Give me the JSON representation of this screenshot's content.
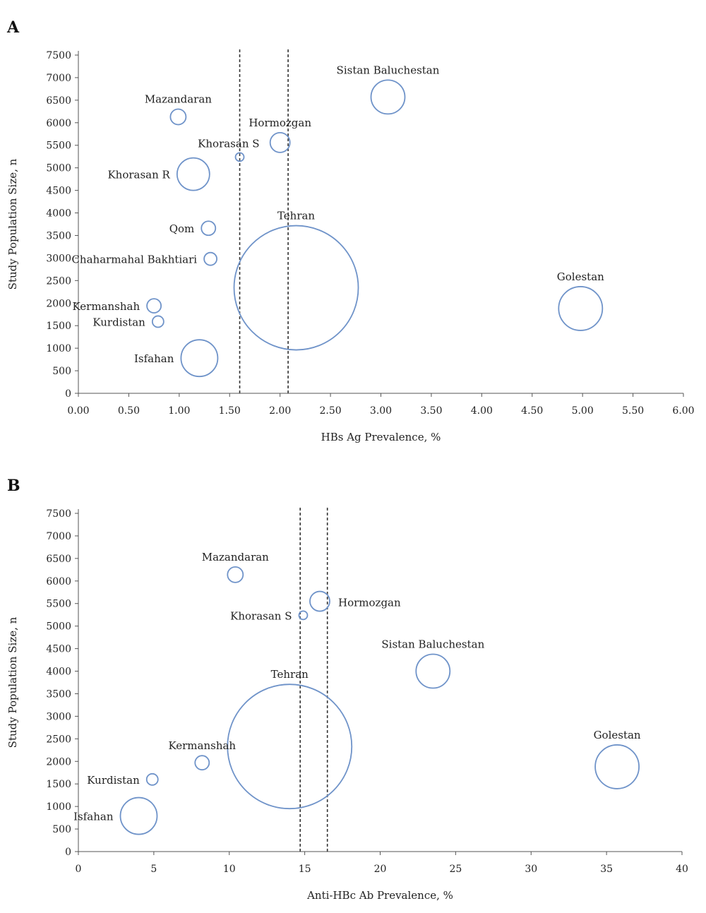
{
  "colors": {
    "bubble_stroke": "#6f93c9",
    "axis": "#555555",
    "refline": "#333333"
  },
  "chart_data": [
    {
      "panel_label": "A",
      "type": "scatter",
      "subtype": "bubble",
      "xlabel": "HBs Ag Prevalence, %",
      "ylabel": "Study Population Size, n",
      "xlim": [
        0,
        6
      ],
      "ylim": [
        0,
        7500
      ],
      "x_ticks": [
        "0.00",
        "0.50",
        "1.00",
        "1.50",
        "2.00",
        "2.50",
        "3.00",
        "3.50",
        "4.00",
        "4.50",
        "5.00",
        "5.50",
        "6.00"
      ],
      "y_ticks": [
        "0",
        "500",
        "1000",
        "1500",
        "2000",
        "2500",
        "3000",
        "3500",
        "4000",
        "4500",
        "5000",
        "5500",
        "6000",
        "6500",
        "7000",
        "7500"
      ],
      "grid": false,
      "reference_lines_x": [
        1.6,
        2.08
      ],
      "points": [
        {
          "label": "Sistan Baluchestan",
          "x": 3.07,
          "y": 6570,
          "r": 24,
          "label_pos": "above"
        },
        {
          "label": "Mazandaran",
          "x": 0.99,
          "y": 6130,
          "r": 11,
          "label_pos": "above"
        },
        {
          "label": "Hormozgan",
          "x": 2.0,
          "y": 5560,
          "r": 14,
          "label_pos": "above"
        },
        {
          "label": "Khorasan S",
          "x": 1.6,
          "y": 5240,
          "r": 6,
          "label_pos": "left-above"
        },
        {
          "label": "Khorasan R",
          "x": 1.14,
          "y": 4860,
          "r": 23,
          "label_pos": "left"
        },
        {
          "label": "Qom",
          "x": 1.29,
          "y": 3660,
          "r": 10,
          "label_pos": "left"
        },
        {
          "label": "Chaharmahal Bakhtiari",
          "x": 1.31,
          "y": 2980,
          "r": 9,
          "label_pos": "left"
        },
        {
          "label": "Tehran",
          "x": 2.16,
          "y": 2340,
          "r": 88,
          "label_pos": "above"
        },
        {
          "label": "Golestan",
          "x": 4.98,
          "y": 1880,
          "r": 31,
          "label_pos": "above"
        },
        {
          "label": "Kermanshah",
          "x": 0.75,
          "y": 1940,
          "r": 10,
          "label_pos": "left"
        },
        {
          "label": "Kurdistan",
          "x": 0.79,
          "y": 1590,
          "r": 8,
          "label_pos": "left"
        },
        {
          "label": "Isfahan",
          "x": 1.2,
          "y": 780,
          "r": 26,
          "label_pos": "left"
        }
      ]
    },
    {
      "panel_label": "B",
      "type": "scatter",
      "subtype": "bubble",
      "xlabel": "Anti-HBc Ab Prevalence, %",
      "ylabel": "Study Population Size, n",
      "xlim": [
        0,
        40
      ],
      "ylim": [
        0,
        7500
      ],
      "x_ticks": [
        "0",
        "5",
        "10",
        "15",
        "20",
        "25",
        "30",
        "35",
        "40"
      ],
      "y_ticks": [
        "0",
        "500",
        "1000",
        "1500",
        "2000",
        "2500",
        "3000",
        "3500",
        "4000",
        "4500",
        "5000",
        "5500",
        "6000",
        "6500",
        "7000",
        "7500"
      ],
      "grid": false,
      "reference_lines_x": [
        14.7,
        16.5
      ],
      "points": [
        {
          "label": "Mazandaran",
          "x": 10.4,
          "y": 6140,
          "r": 11,
          "label_pos": "above"
        },
        {
          "label": "Hormozgan",
          "x": 16.0,
          "y": 5550,
          "r": 14,
          "label_pos": "right"
        },
        {
          "label": "Khorasan S",
          "x": 14.9,
          "y": 5240,
          "r": 6,
          "label_pos": "left"
        },
        {
          "label": "Sistan Baluchestan",
          "x": 23.5,
          "y": 4000,
          "r": 24,
          "label_pos": "above"
        },
        {
          "label": "Tehran",
          "x": 14.0,
          "y": 2330,
          "r": 88,
          "label_pos": "above"
        },
        {
          "label": "Golestan",
          "x": 35.7,
          "y": 1880,
          "r": 31,
          "label_pos": "above"
        },
        {
          "label": "Kermanshah",
          "x": 8.2,
          "y": 1970,
          "r": 10,
          "label_pos": "above"
        },
        {
          "label": "Kurdistan",
          "x": 4.9,
          "y": 1600,
          "r": 8,
          "label_pos": "left"
        },
        {
          "label": "Isfahan",
          "x": 4.0,
          "y": 790,
          "r": 26,
          "label_pos": "left"
        }
      ]
    }
  ]
}
